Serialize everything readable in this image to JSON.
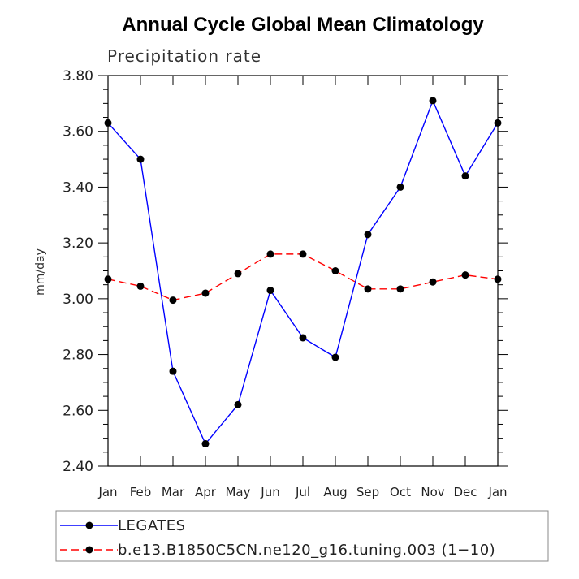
{
  "chart_data": {
    "type": "line",
    "title": "Annual Cycle Global Mean Climatology",
    "subtitle": "Precipitation rate",
    "ylabel": "mm/day",
    "xlabel": "",
    "categories": [
      "Jan",
      "Feb",
      "Mar",
      "Apr",
      "May",
      "Jun",
      "Jul",
      "Aug",
      "Sep",
      "Oct",
      "Nov",
      "Dec",
      "Jan"
    ],
    "ylim": [
      2.4,
      3.8
    ],
    "yticks": [
      "2.40",
      "2.60",
      "2.80",
      "3.00",
      "3.20",
      "3.40",
      "3.60",
      "3.80"
    ],
    "grid": false,
    "legend_position": "bottom",
    "series": [
      {
        "name": "LEGATES",
        "color": "#0000ff",
        "dash": "solid",
        "values": [
          3.63,
          3.5,
          2.74,
          2.48,
          2.62,
          3.03,
          2.86,
          2.79,
          3.23,
          3.4,
          3.71,
          3.44,
          3.63
        ]
      },
      {
        "name": "b.e13.B1850C5CN.ne120_g16.tuning.003 (1−10)",
        "color": "#ff0000",
        "dash": "dashed",
        "values": [
          3.07,
          3.045,
          2.995,
          3.02,
          3.09,
          3.16,
          3.16,
          3.1,
          3.035,
          3.035,
          3.06,
          3.085,
          3.07
        ]
      }
    ]
  }
}
